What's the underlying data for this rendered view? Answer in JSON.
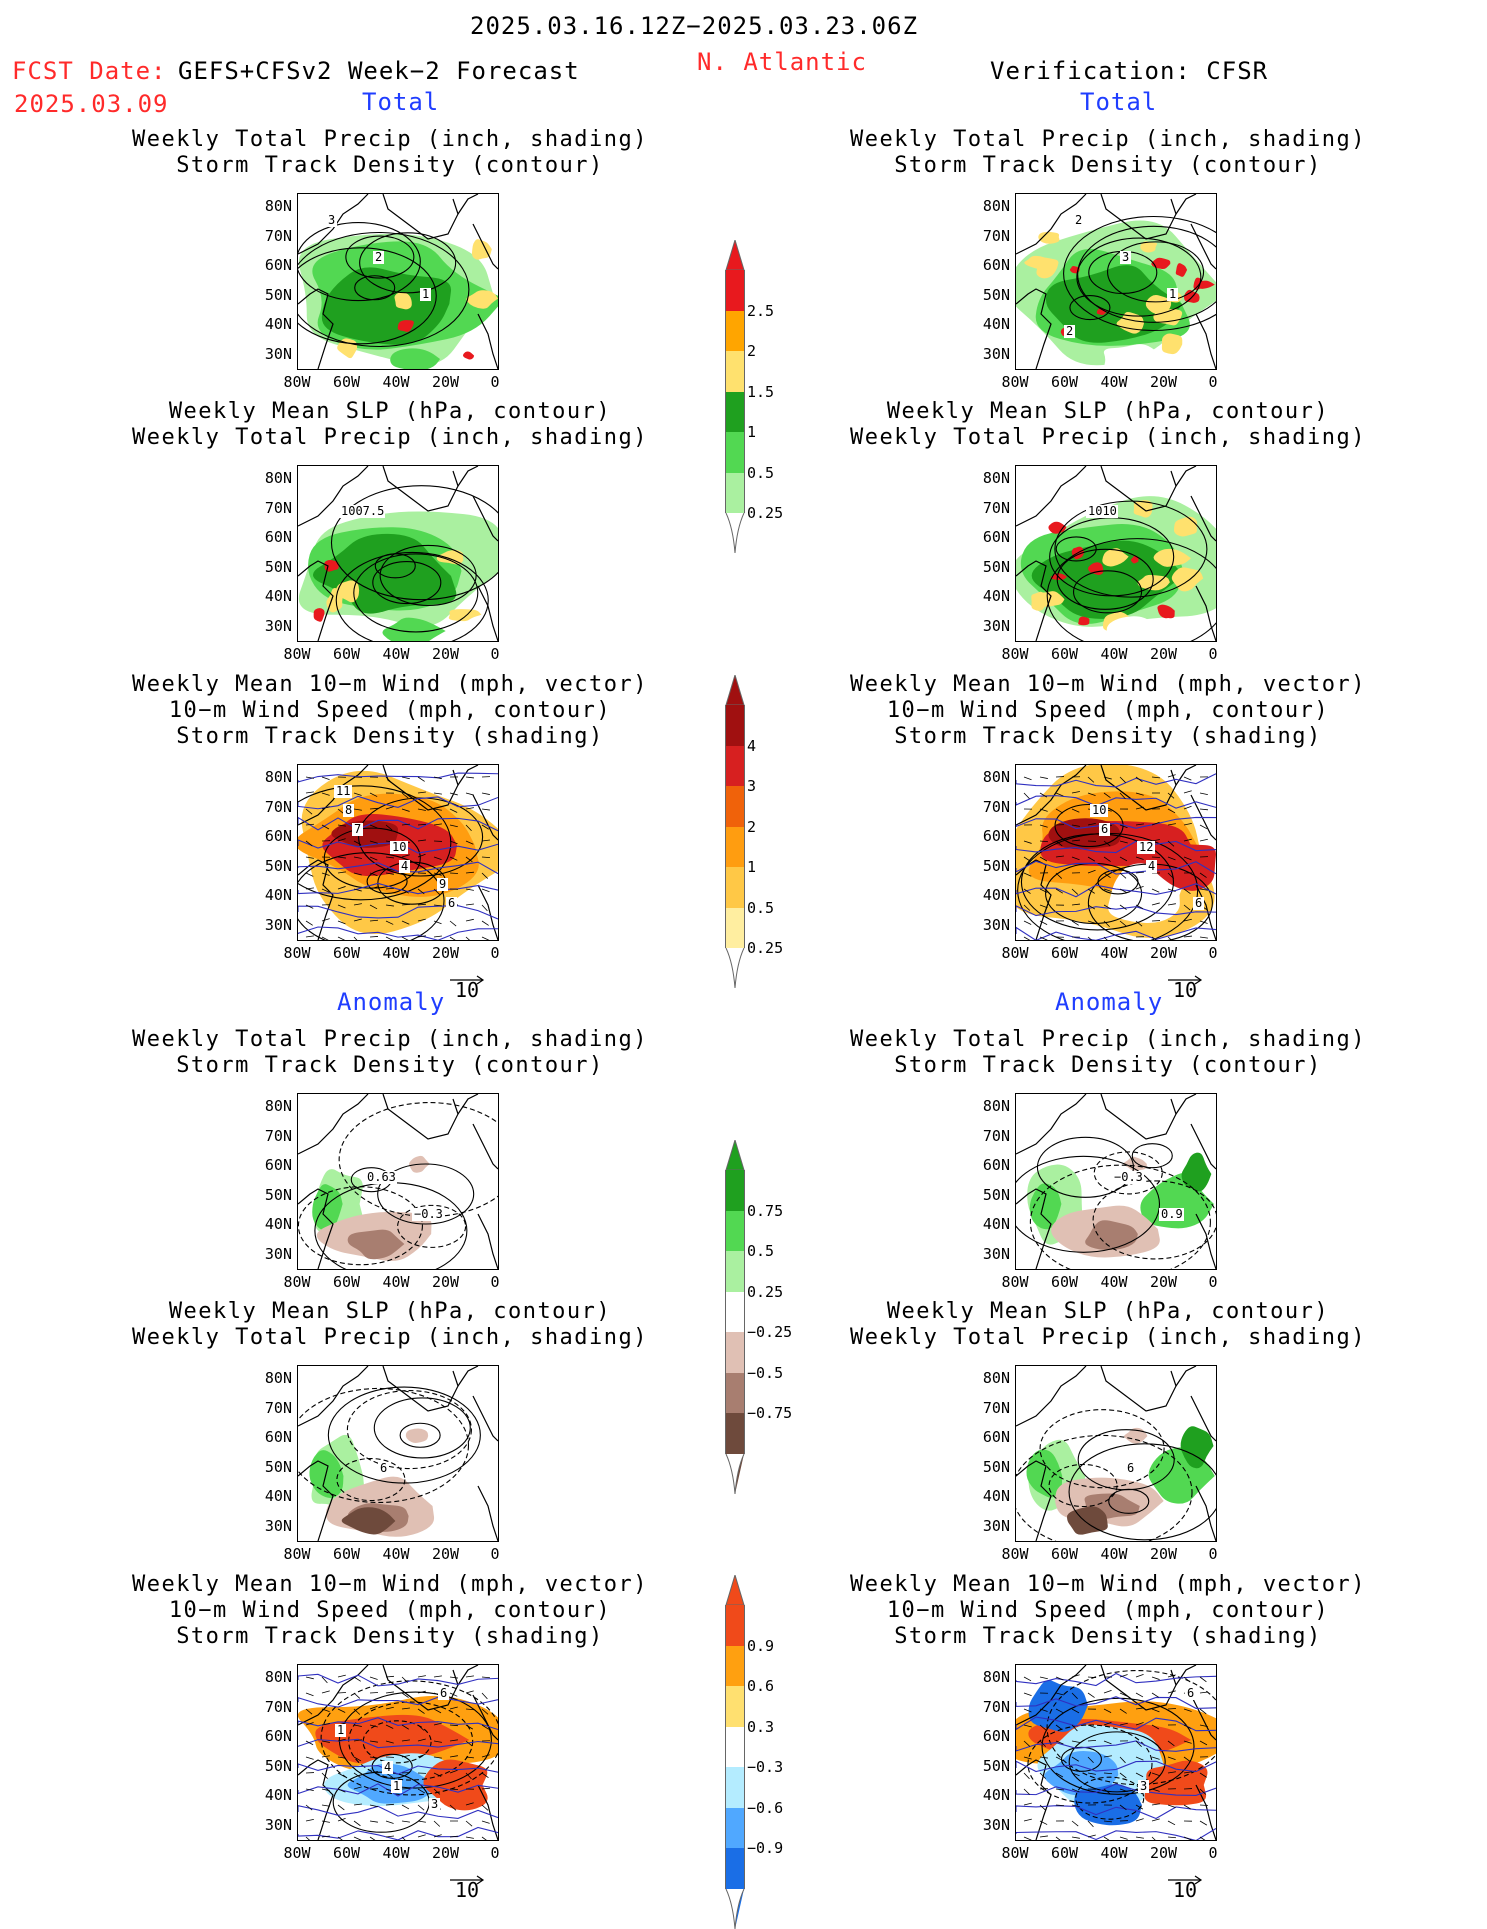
{
  "header": {
    "period": "2025.03.16.12Z−2025.03.23.06Z",
    "fcst_label": "FCST Date:",
    "fcst_model": "GEFS+CFSv2 Week−2 Forecast",
    "fcst_date": "2025.03.09",
    "region": "N. Atlantic",
    "verification": "Verification: CFSR"
  },
  "sections": {
    "total": "Total",
    "anomaly": "Anomaly"
  },
  "titles": {
    "precip_track": [
      "Weekly Total Precip (inch, shading)",
      "Storm Track Density (contour)"
    ],
    "slp_precip": [
      "Weekly Mean SLP (hPa, contour)",
      "Weekly Total Precip (inch, shading)"
    ],
    "wind": [
      "Weekly Mean 10−m Wind (mph, vector)",
      "10−m Wind Speed (mph, contour)",
      "Storm Track Density (shading)"
    ]
  },
  "axes": {
    "lat": [
      "80N",
      "70N",
      "60N",
      "50N",
      "40N",
      "30N"
    ],
    "lon": [
      "80W",
      "60W",
      "40W",
      "20W",
      "0"
    ]
  },
  "vector_ref": "10",
  "colorbars": {
    "precip_total": {
      "ticks": [
        "2.5",
        "2",
        "1.5",
        "1",
        "0.5",
        "0.25"
      ],
      "colors": [
        "#e8191e",
        "#ffa500",
        "#ffe16e",
        "#1fa01f",
        "#52d852",
        "#aaf0a0"
      ]
    },
    "track_total": {
      "ticks": [
        "4",
        "3",
        "2",
        "1",
        "0.5",
        "0.25"
      ],
      "colors": [
        "#a01010",
        "#d72020",
        "#f0620a",
        "#ff9d10",
        "#ffc846",
        "#ffeea0"
      ]
    },
    "precip_anom": {
      "ticks": [
        "0.75",
        "0.5",
        "0.25",
        "−0.25",
        "−0.5",
        "−0.75"
      ],
      "colors": [
        "#1fa01f",
        "#52d852",
        "#aaf0a0",
        "#ffffff",
        "#e0c0b4",
        "#a87e70",
        "#6e4a3c"
      ]
    },
    "track_anom": {
      "ticks": [
        "0.9",
        "0.6",
        "0.3",
        "−0.3",
        "−0.6",
        "−0.9"
      ],
      "colors": [
        "#f04a1a",
        "#ffa010",
        "#ffe070",
        "#ffffff",
        "#b4ecff",
        "#50a8ff",
        "#1a6ee6"
      ]
    }
  },
  "map_labels": {
    "L1": [
      "3",
      "2",
      "1"
    ],
    "R1": [
      "2",
      "3",
      "1",
      "2"
    ],
    "L2": [
      "1007.5"
    ],
    "R2": [
      "1010"
    ],
    "L3": [
      "7",
      "4",
      "6",
      "8",
      "10",
      "9",
      "11"
    ],
    "R3": [
      "6",
      "4",
      "6",
      "10",
      "12"
    ],
    "L4": [
      "0.63",
      "−0.3"
    ],
    "R4": [
      "−0.3",
      "0.9"
    ],
    "L5": [
      "6"
    ],
    "R5": [
      "6"
    ],
    "L6": [
      "1",
      "6",
      "1",
      "4",
      "3"
    ],
    "R6": [
      "3",
      "6"
    ]
  }
}
